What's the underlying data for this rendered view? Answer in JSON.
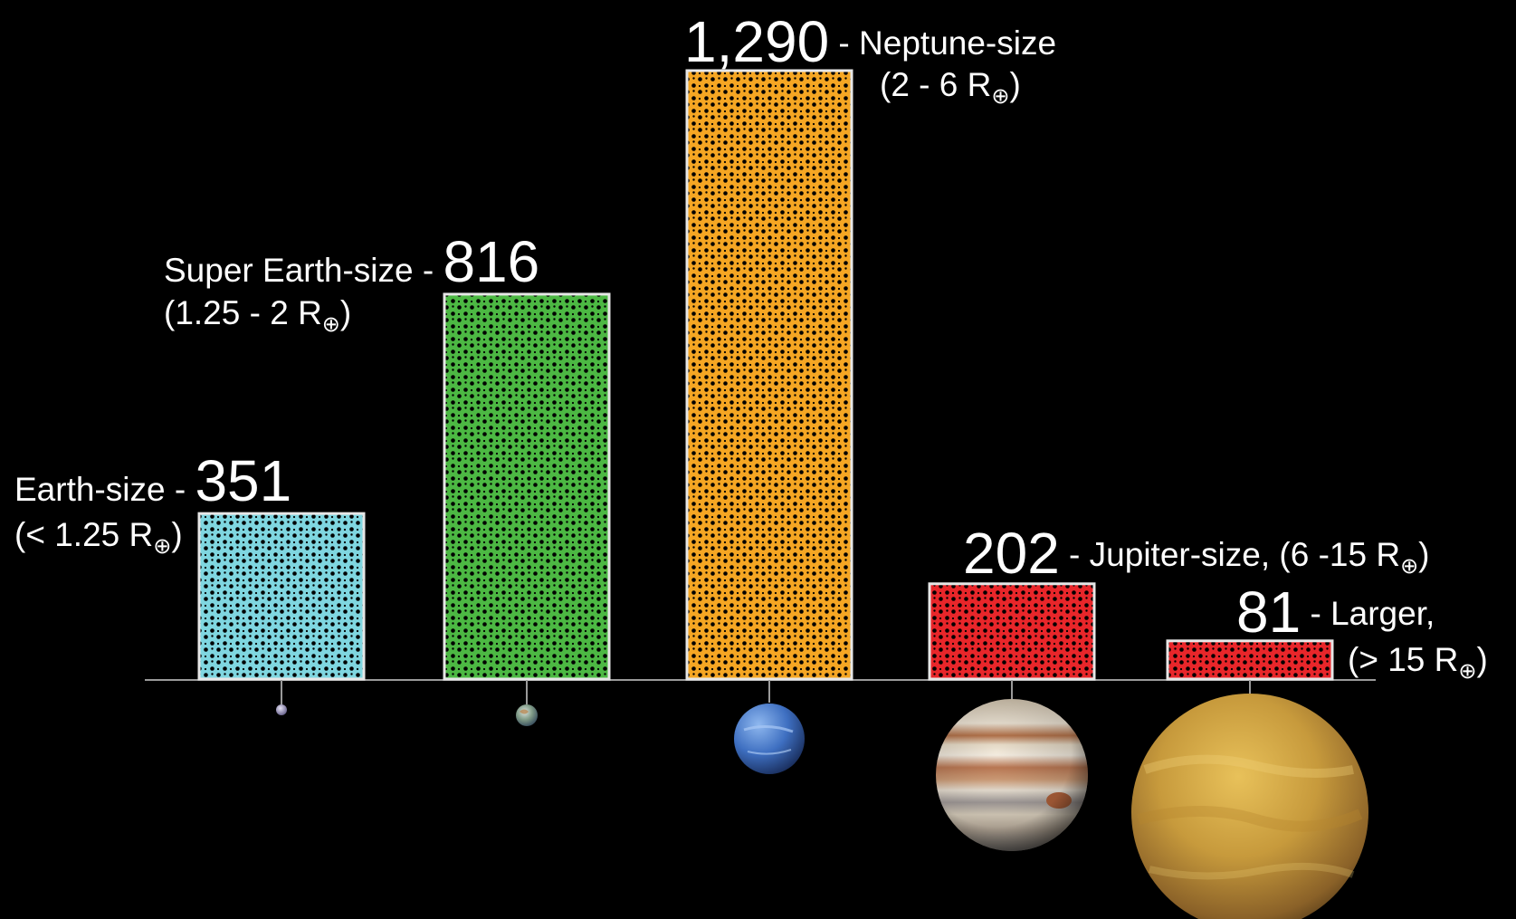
{
  "chart_data": {
    "type": "bar",
    "title": "",
    "xlabel": "",
    "ylabel": "",
    "ylim": [
      0,
      1290
    ],
    "grid": false,
    "legend": "none",
    "categories": [
      "Earth-size",
      "Super Earth-size",
      "Neptune-size",
      "Jupiter-size",
      "Larger"
    ],
    "values": [
      351,
      816,
      1290,
      202,
      81
    ],
    "value_labels": [
      "351",
      "816",
      "1,290",
      "202",
      "81"
    ],
    "labels": [
      {
        "name": "Earth-size",
        "range_text": "(< 1.25 R",
        "suffix": "-"
      },
      {
        "name": "Super Earth-size",
        "range_text": "(1.25 - 2 R",
        "suffix": "-"
      },
      {
        "name": "Neptune-size",
        "range_text": "(2 - 6 R",
        "prefix": "-"
      },
      {
        "name": "Jupiter-size, (6 -15 R",
        "range_text": "",
        "prefix": "-"
      },
      {
        "name": "Larger,",
        "range_text": "(> 15 R",
        "prefix": "-"
      }
    ],
    "subscript_symbol": "⊕",
    "colors": [
      "#7fd6e0",
      "#4cb843",
      "#f5a623",
      "#e8262a",
      "#e8262a"
    ],
    "planet_icons": [
      "earth-icon",
      "super-earth-icon",
      "neptune-icon",
      "jupiter-icon",
      "gas-giant-icon"
    ]
  }
}
